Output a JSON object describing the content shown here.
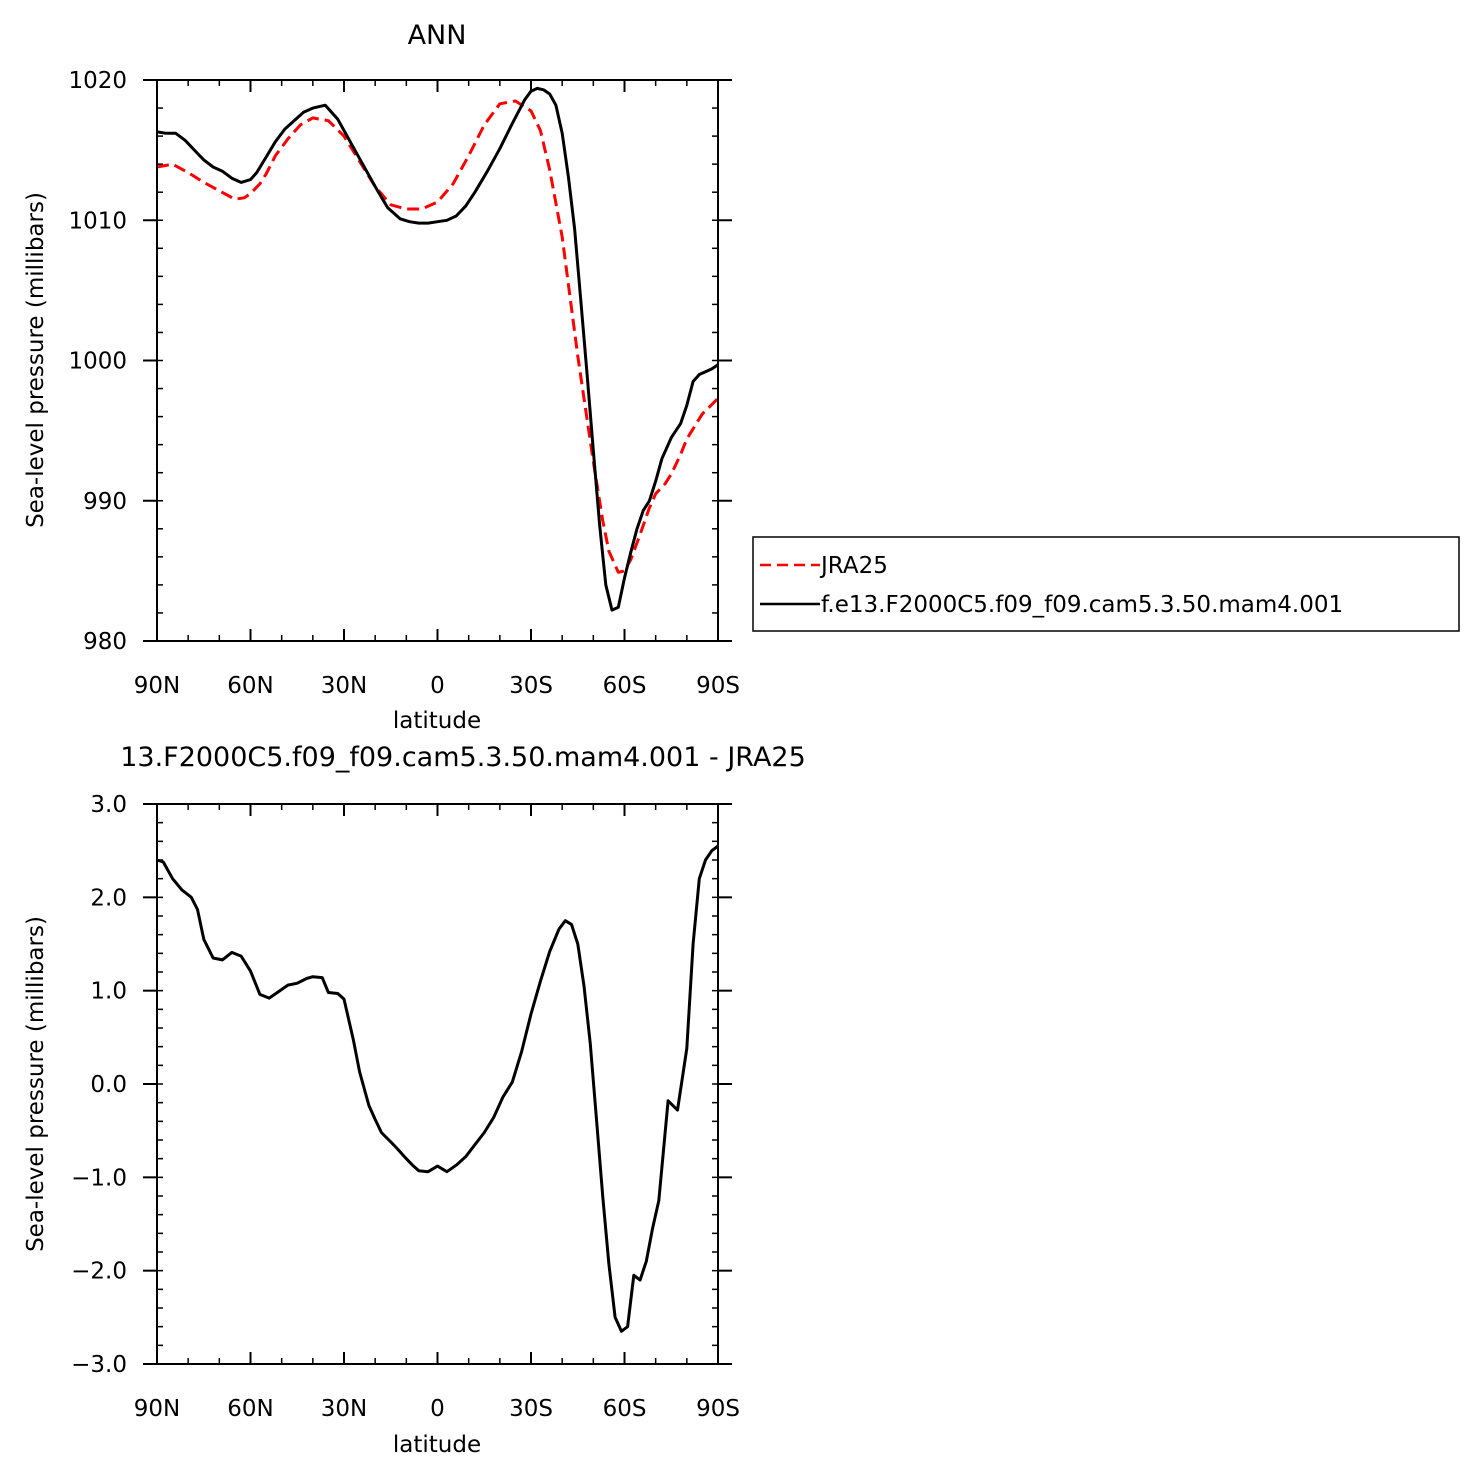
{
  "chart_data": [
    {
      "type": "line",
      "title": "ANN",
      "xlabel": "latitude",
      "ylabel": "Sea-level pressure (millibars)",
      "xlim": [
        90,
        -90
      ],
      "ylim": [
        980,
        1020
      ],
      "x_ticks": [
        90,
        60,
        30,
        0,
        -30,
        -60,
        -90
      ],
      "x_tick_labels": [
        "90N",
        "60N",
        "30N",
        "0",
        "30S",
        "60S",
        "90S"
      ],
      "y_ticks": [
        980,
        990,
        1000,
        1010,
        1020
      ],
      "y_tick_labels": [
        "980",
        "990",
        "1000",
        "1010",
        "1020"
      ],
      "legend": {
        "placement": "right",
        "entries": [
          "JRA25",
          "f.e13.F2000C5.f09_f09.cam5.3.50.mam4.001"
        ]
      },
      "series": [
        {
          "name": "JRA25",
          "color": "#ff0000",
          "dash": "dashed",
          "x": [
            90,
            85,
            80,
            75,
            70,
            65,
            62,
            60,
            57,
            55,
            52,
            48,
            44,
            40,
            35,
            30,
            25,
            20,
            15,
            10,
            5,
            0,
            -5,
            -10,
            -15,
            -20,
            -25,
            -30,
            -33,
            -36,
            -40,
            -45,
            -50,
            -53,
            -55,
            -58,
            -60,
            -62,
            -65,
            -68,
            -70,
            -73,
            -75,
            -78,
            -80,
            -85,
            -90
          ],
          "values": [
            1013.8,
            1014.0,
            1013.4,
            1012.7,
            1012.1,
            1011.5,
            1011.6,
            1011.9,
            1012.6,
            1013.3,
            1014.6,
            1015.8,
            1016.8,
            1017.3,
            1017.1,
            1016.0,
            1014.2,
            1012.4,
            1011.1,
            1010.8,
            1010.8,
            1011.3,
            1012.6,
            1014.6,
            1016.8,
            1018.3,
            1018.5,
            1017.8,
            1016.4,
            1013.6,
            1008.8,
            1000.3,
            992.8,
            988.6,
            986.4,
            984.9,
            985.0,
            985.8,
            987.6,
            989.5,
            990.5,
            991.2,
            991.9,
            993.3,
            994.4,
            996.2,
            997.3
          ]
        },
        {
          "name": "f.e13.F2000C5.f09_f09.cam5.3.50.mam4.001",
          "color": "#000000",
          "dash": "solid",
          "x": [
            90,
            87,
            84,
            81,
            78,
            75,
            72,
            69,
            66,
            63,
            60,
            58,
            55,
            52,
            49,
            46,
            43,
            40,
            36,
            32,
            28,
            24,
            20,
            16,
            12,
            9,
            6,
            3,
            0,
            -3,
            -6,
            -9,
            -12,
            -16,
            -20,
            -24,
            -28,
            -30,
            -32,
            -34,
            -36,
            -38,
            -40,
            -42,
            -44,
            -46,
            -48,
            -50,
            -52,
            -54,
            -56,
            -58,
            -60,
            -62,
            -64,
            -66,
            -68,
            -70,
            -72,
            -75,
            -78,
            -80,
            -82,
            -84,
            -86,
            -88,
            -90
          ],
          "values": [
            1016.3,
            1016.2,
            1016.2,
            1015.7,
            1015.0,
            1014.3,
            1013.8,
            1013.5,
            1013.0,
            1012.7,
            1012.9,
            1013.4,
            1014.5,
            1015.6,
            1016.5,
            1017.1,
            1017.7,
            1018.0,
            1018.2,
            1017.2,
            1015.6,
            1014.0,
            1012.4,
            1010.9,
            1010.1,
            1009.9,
            1009.8,
            1009.8,
            1009.9,
            1010.0,
            1010.3,
            1011.0,
            1012.0,
            1013.5,
            1015.1,
            1016.9,
            1018.6,
            1019.2,
            1019.4,
            1019.3,
            1019.0,
            1018.2,
            1016.2,
            1013.1,
            1009.4,
            1004.2,
            999.0,
            993.6,
            988.3,
            984.0,
            982.2,
            982.4,
            984.5,
            986.3,
            988.0,
            989.3,
            990.0,
            991.4,
            993.0,
            994.5,
            995.5,
            996.8,
            998.5,
            999.0,
            999.2,
            999.4,
            999.7
          ]
        }
      ]
    },
    {
      "type": "line",
      "title": "13.F2000C5.f09_f09.cam5.3.50.mam4.001 - JRA25",
      "xlabel": "latitude",
      "ylabel": "Sea-level pressure (millibars)",
      "xlim": [
        90,
        -90
      ],
      "ylim": [
        -3.0,
        3.0
      ],
      "x_ticks": [
        90,
        60,
        30,
        0,
        -30,
        -60,
        -90
      ],
      "x_tick_labels": [
        "90N",
        "60N",
        "30N",
        "0",
        "30S",
        "60S",
        "90S"
      ],
      "y_ticks": [
        -3.0,
        -2.0,
        -1.0,
        0.0,
        1.0,
        2.0,
        3.0
      ],
      "y_tick_labels": [
        "-3.0",
        "-2.0",
        "-1.0",
        "0.0",
        "1.0",
        "2.0",
        "3.0"
      ],
      "series": [
        {
          "color": "#000000",
          "dash": "solid",
          "x": [
            90,
            88,
            85,
            82,
            79,
            77,
            75,
            72,
            69,
            66,
            63,
            60,
            57,
            54,
            51,
            48,
            45,
            42,
            40,
            37,
            35,
            32,
            30,
            27,
            25,
            22,
            20,
            18,
            15,
            13,
            10,
            8,
            6,
            3,
            0,
            -3,
            -6,
            -9,
            -12,
            -15,
            -18,
            -21,
            -24,
            -27,
            -30,
            -33,
            -36,
            -39,
            -41,
            -43,
            -45,
            -47,
            -49,
            -51,
            -53,
            -55,
            -57,
            -59,
            -61,
            -63,
            -65,
            -67,
            -69,
            -71,
            -74,
            -77,
            -80,
            -82,
            -84,
            -86,
            -88,
            -90
          ],
          "values": [
            2.4,
            2.38,
            2.2,
            2.08,
            2.0,
            1.87,
            1.55,
            1.35,
            1.33,
            1.41,
            1.37,
            1.21,
            0.96,
            0.92,
            0.99,
            1.06,
            1.08,
            1.13,
            1.15,
            1.14,
            0.98,
            0.97,
            0.91,
            0.47,
            0.13,
            -0.23,
            -0.38,
            -0.52,
            -0.62,
            -0.69,
            -0.8,
            -0.87,
            -0.93,
            -0.94,
            -0.88,
            -0.94,
            -0.87,
            -0.78,
            -0.65,
            -0.52,
            -0.36,
            -0.14,
            0.02,
            0.35,
            0.75,
            1.1,
            1.42,
            1.66,
            1.75,
            1.71,
            1.5,
            1.05,
            0.44,
            -0.38,
            -1.2,
            -1.93,
            -2.5,
            -2.65,
            -2.6,
            -2.05,
            -2.1,
            -1.9,
            -1.55,
            -1.25,
            -0.18,
            -0.28,
            0.38,
            1.5,
            2.2,
            2.4,
            2.5,
            2.55
          ]
        }
      ]
    }
  ]
}
